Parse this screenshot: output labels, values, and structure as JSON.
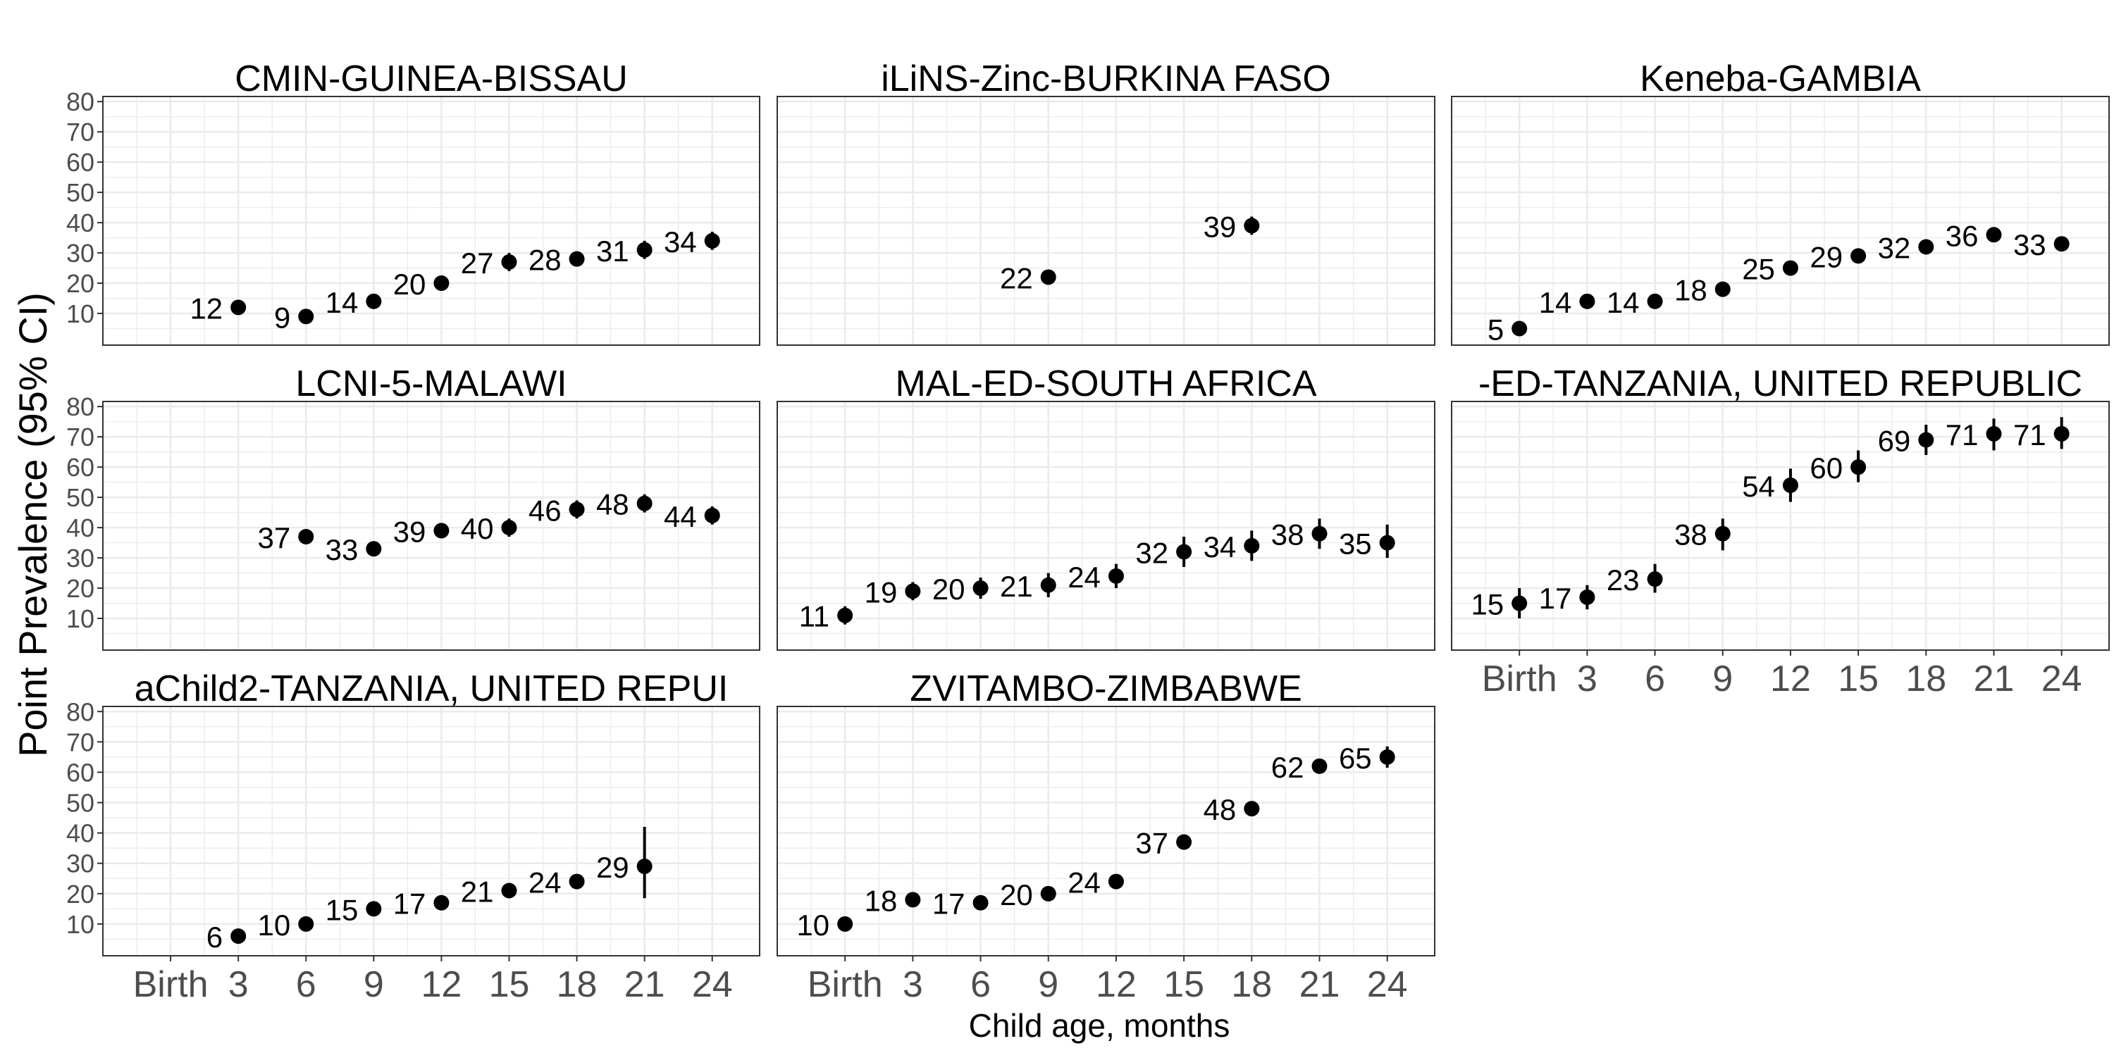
{
  "chart_data": {
    "type": "scatter",
    "subtype": "faceted point estimates with 95% CI error bars",
    "xlabel": "Child age, months",
    "ylabel": "Point Prevalence (95% CI)",
    "x_ticks": [
      "Birth",
      "3",
      "6",
      "9",
      "12",
      "15",
      "18",
      "21",
      "24"
    ],
    "y_ticks": [
      "10",
      "20",
      "30",
      "40",
      "50",
      "60",
      "70",
      "80"
    ],
    "ylim": [
      0,
      80
    ],
    "grid": true,
    "legend": "none",
    "colors": {
      "panel_background": "#ffffff",
      "grid": "#ebebeb",
      "border": "#333333",
      "point": "#000000",
      "text": "#000000",
      "tick_text": "#4d4d4d"
    },
    "facets": [
      {
        "title": "CMIN-GUINEA-BISSAU",
        "points": [
          {
            "x": "3",
            "y": 12,
            "lo": 10,
            "hi": 14,
            "label": "12"
          },
          {
            "x": "6",
            "y": 9,
            "lo": 7.5,
            "hi": 10.5,
            "label": "9"
          },
          {
            "x": "9",
            "y": 14,
            "lo": 12,
            "hi": 16,
            "label": "14"
          },
          {
            "x": "12",
            "y": 20,
            "lo": 17.5,
            "hi": 22.5,
            "label": "20"
          },
          {
            "x": "15",
            "y": 27,
            "lo": 24,
            "hi": 30,
            "label": "27"
          },
          {
            "x": "18",
            "y": 28,
            "lo": 25.5,
            "hi": 30.5,
            "label": "28"
          },
          {
            "x": "21",
            "y": 31,
            "lo": 28,
            "hi": 34,
            "label": "31"
          },
          {
            "x": "24",
            "y": 34,
            "lo": 31,
            "hi": 37,
            "label": "34"
          }
        ]
      },
      {
        "title": "iLiNS-Zinc-BURKINA FASO",
        "points": [
          {
            "x": "9",
            "y": 22,
            "lo": 20,
            "hi": 24,
            "label": "22"
          },
          {
            "x": "18",
            "y": 39,
            "lo": 36,
            "hi": 42,
            "label": "39"
          }
        ]
      },
      {
        "title": "Keneba-GAMBIA",
        "points": [
          {
            "x": "Birth",
            "y": 5,
            "lo": 4,
            "hi": 6,
            "label": "5"
          },
          {
            "x": "3",
            "y": 14,
            "lo": 13,
            "hi": 15,
            "label": "14"
          },
          {
            "x": "6",
            "y": 14,
            "lo": 13,
            "hi": 15,
            "label": "14"
          },
          {
            "x": "9",
            "y": 18,
            "lo": 17,
            "hi": 19,
            "label": "18"
          },
          {
            "x": "12",
            "y": 25,
            "lo": 24,
            "hi": 26,
            "label": "25"
          },
          {
            "x": "15",
            "y": 29,
            "lo": 28,
            "hi": 30,
            "label": "29"
          },
          {
            "x": "18",
            "y": 32,
            "lo": 31,
            "hi": 33,
            "label": "32"
          },
          {
            "x": "21",
            "y": 36,
            "lo": 35,
            "hi": 37,
            "label": "36"
          },
          {
            "x": "24",
            "y": 33,
            "lo": 32,
            "hi": 34,
            "label": "33"
          }
        ]
      },
      {
        "title": "LCNI-5-MALAWI",
        "points": [
          {
            "x": "6",
            "y": 37,
            "lo": 35,
            "hi": 39,
            "label": "37"
          },
          {
            "x": "9",
            "y": 33,
            "lo": 30.5,
            "hi": 35.5,
            "label": "33"
          },
          {
            "x": "12",
            "y": 39,
            "lo": 36.5,
            "hi": 41.5,
            "label": "39"
          },
          {
            "x": "15",
            "y": 40,
            "lo": 37,
            "hi": 43,
            "label": "40"
          },
          {
            "x": "18",
            "y": 46,
            "lo": 43,
            "hi": 49,
            "label": "46"
          },
          {
            "x": "21",
            "y": 48,
            "lo": 45,
            "hi": 51,
            "label": "48"
          },
          {
            "x": "24",
            "y": 44,
            "lo": 41,
            "hi": 47,
            "label": "44"
          }
        ]
      },
      {
        "title": "MAL-ED-SOUTH AFRICA",
        "points": [
          {
            "x": "Birth",
            "y": 11,
            "lo": 8,
            "hi": 14,
            "label": "11"
          },
          {
            "x": "3",
            "y": 19,
            "lo": 16,
            "hi": 22,
            "label": "19"
          },
          {
            "x": "6",
            "y": 20,
            "lo": 16.5,
            "hi": 23.5,
            "label": "20"
          },
          {
            "x": "9",
            "y": 21,
            "lo": 17,
            "hi": 25,
            "label": "21"
          },
          {
            "x": "12",
            "y": 24,
            "lo": 20,
            "hi": 28,
            "label": "24"
          },
          {
            "x": "15",
            "y": 32,
            "lo": 27,
            "hi": 37,
            "label": "32"
          },
          {
            "x": "18",
            "y": 34,
            "lo": 29,
            "hi": 39,
            "label": "34"
          },
          {
            "x": "21",
            "y": 38,
            "lo": 33,
            "hi": 43,
            "label": "38"
          },
          {
            "x": "24",
            "y": 35,
            "lo": 30,
            "hi": 41,
            "label": "35"
          }
        ]
      },
      {
        "title": "-ED-TANZANIA, UNITED REPUBLIC",
        "points": [
          {
            "x": "Birth",
            "y": 15,
            "lo": 10,
            "hi": 20,
            "label": "15"
          },
          {
            "x": "3",
            "y": 17,
            "lo": 13,
            "hi": 21,
            "label": "17"
          },
          {
            "x": "6",
            "y": 23,
            "lo": 18.5,
            "hi": 28,
            "label": "23"
          },
          {
            "x": "9",
            "y": 38,
            "lo": 32.5,
            "hi": 43,
            "label": "38"
          },
          {
            "x": "12",
            "y": 54,
            "lo": 48.5,
            "hi": 59.5,
            "label": "54"
          },
          {
            "x": "15",
            "y": 60,
            "lo": 55,
            "hi": 65.5,
            "label": "60"
          },
          {
            "x": "18",
            "y": 69,
            "lo": 64,
            "hi": 74,
            "label": "69"
          },
          {
            "x": "21",
            "y": 71,
            "lo": 65.5,
            "hi": 76,
            "label": "71"
          },
          {
            "x": "24",
            "y": 71,
            "lo": 66,
            "hi": 76.5,
            "label": "71"
          }
        ]
      },
      {
        "title": "aChild2-TANZANIA, UNITED REPUI",
        "points": [
          {
            "x": "3",
            "y": 6,
            "lo": 5,
            "hi": 7,
            "label": "6"
          },
          {
            "x": "6",
            "y": 10,
            "lo": 9,
            "hi": 11,
            "label": "10"
          },
          {
            "x": "9",
            "y": 15,
            "lo": 14,
            "hi": 16,
            "label": "15"
          },
          {
            "x": "12",
            "y": 17,
            "lo": 16,
            "hi": 18,
            "label": "17"
          },
          {
            "x": "15",
            "y": 21,
            "lo": 20,
            "hi": 22,
            "label": "21"
          },
          {
            "x": "18",
            "y": 24,
            "lo": 23,
            "hi": 25,
            "label": "24"
          },
          {
            "x": "21",
            "y": 29,
            "lo": 18.5,
            "hi": 42,
            "label": "29"
          }
        ]
      },
      {
        "title": "ZVITAMBO-ZIMBABWE",
        "points": [
          {
            "x": "Birth",
            "y": 10,
            "lo": 9,
            "hi": 11,
            "label": "10"
          },
          {
            "x": "3",
            "y": 18,
            "lo": 17,
            "hi": 19,
            "label": "18"
          },
          {
            "x": "6",
            "y": 17,
            "lo": 16,
            "hi": 18,
            "label": "17"
          },
          {
            "x": "9",
            "y": 20,
            "lo": 19,
            "hi": 21,
            "label": "20"
          },
          {
            "x": "12",
            "y": 24,
            "lo": 23,
            "hi": 25,
            "label": "24"
          },
          {
            "x": "15",
            "y": 37,
            "lo": 36,
            "hi": 38,
            "label": "37"
          },
          {
            "x": "18",
            "y": 48,
            "lo": 47,
            "hi": 49,
            "label": "48"
          },
          {
            "x": "21",
            "y": 62,
            "lo": 60.5,
            "hi": 64,
            "label": "62"
          },
          {
            "x": "24",
            "y": 65,
            "lo": 61.5,
            "hi": 68.5,
            "label": "65"
          }
        ]
      }
    ]
  }
}
